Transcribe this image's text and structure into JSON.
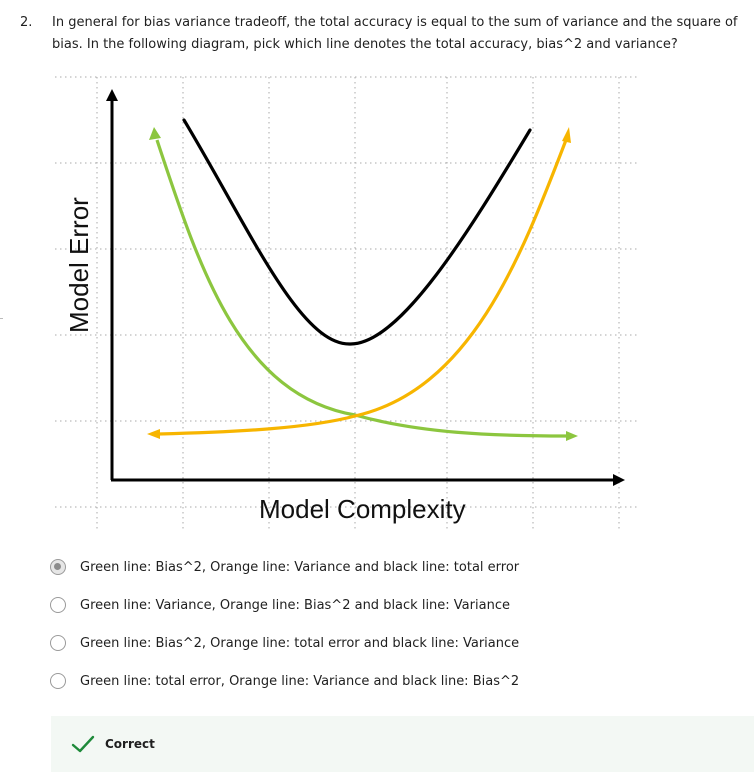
{
  "question": {
    "number": "2.",
    "text": "In general for bias variance tradeoff, the total accuracy is equal to the sum of variance and the square of bias. In the following diagram, pick which line denotes the total accuracy, bias^2 and variance?"
  },
  "diagram": {
    "y_axis_label": "Model Error",
    "x_axis_label": "Model Complexity",
    "colors": {
      "green": "#8cc63f",
      "orange": "#f7b500",
      "black": "#000000",
      "grid": "#aaaaaa"
    }
  },
  "options": [
    {
      "label": "Green line: Bias^2, Orange line: Variance and black line: total error",
      "selected": true
    },
    {
      "label": "Green line: Variance, Orange line: Bias^2 and black line: Variance",
      "selected": false
    },
    {
      "label": "Green line: Bias^2, Orange line: total error and black line: Variance",
      "selected": false
    },
    {
      "label": "Green line: total error, Orange line: Variance and black line: Bias^2",
      "selected": false
    }
  ],
  "feedback": {
    "label": "Correct",
    "color": "#1e8a3a"
  }
}
